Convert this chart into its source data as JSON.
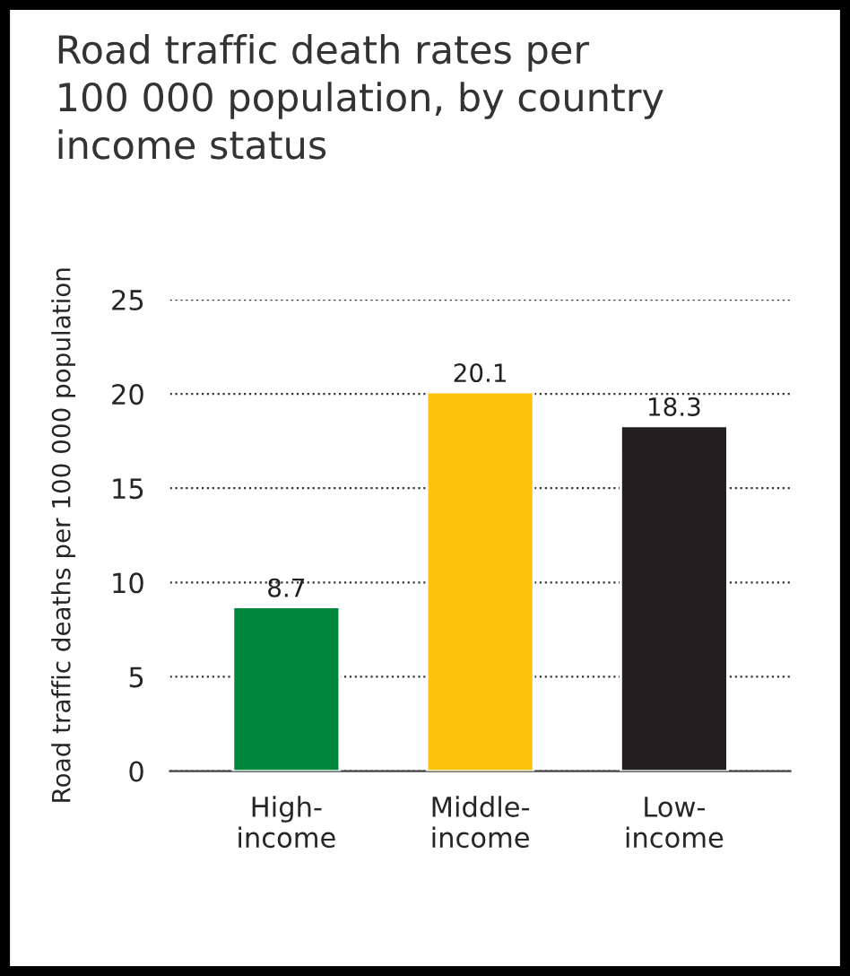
{
  "chart_data": {
    "type": "bar",
    "title": "Road traffic death rates per\n100 000 population, by country\nincome status",
    "ylabel": "Road traffic deaths per 100 000 population",
    "categories": [
      "High-\nincome",
      "Middle-\nincome",
      "Low-\nincome"
    ],
    "values": [
      8.7,
      20.1,
      18.3
    ],
    "colors": [
      "#00873e",
      "#fcc30b",
      "#231f20"
    ],
    "ylim": [
      0,
      25
    ],
    "yticks": [
      0,
      5,
      10,
      15,
      20,
      25
    ],
    "grid": "y",
    "data_labels": true
  }
}
